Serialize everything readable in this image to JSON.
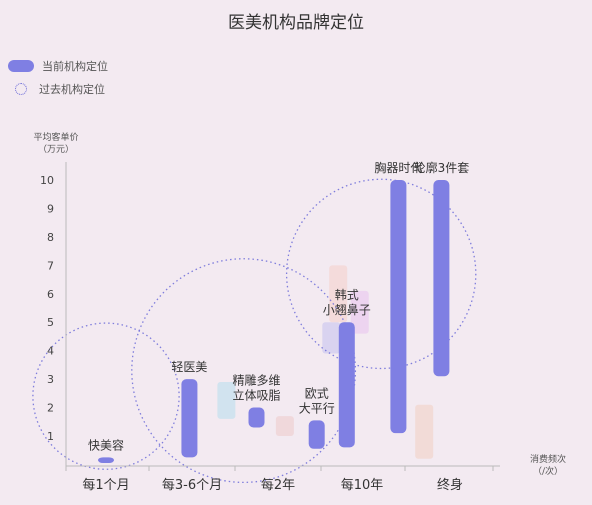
{
  "chart_data": {
    "type": "bar",
    "title": "医美机构品牌定位",
    "ylabel": [
      "平均客单价",
      "（万元）"
    ],
    "xlabel": [
      "消费频次",
      "（/次）"
    ],
    "ylim": [
      0,
      11
    ],
    "yticks": [
      1,
      2,
      3,
      4,
      5,
      6,
      7,
      8,
      9,
      10
    ],
    "categories": [
      "每1个月",
      "每3-6个月",
      "每2年",
      "每10年",
      "终身"
    ],
    "legend": {
      "current": "当前机构定位",
      "past": "过去机构定位"
    },
    "bars": [
      {
        "label": "快美容",
        "label_lines": [
          "快美容"
        ],
        "x": 0.6,
        "low": 0.05,
        "high": 0.25,
        "kind": "current"
      },
      {
        "label": "轻医美",
        "label_lines": [
          "轻医美"
        ],
        "x": 1.57,
        "low": 0.25,
        "high": 3.0,
        "kind": "current"
      },
      {
        "label": "精雕多维立体吸脂",
        "label_lines": [
          "精雕多维",
          "立体吸脂"
        ],
        "x": 2.35,
        "low": 1.3,
        "high": 2.0,
        "kind": "current"
      },
      {
        "label": "欧式大平行",
        "label_lines": [
          "欧式",
          "大平行"
        ],
        "x": 3.05,
        "low": 0.55,
        "high": 1.55,
        "kind": "current"
      },
      {
        "label": "韩式小翘鼻子",
        "label_lines": [
          "韩式",
          "小翘鼻子"
        ],
        "x": 3.4,
        "low": 0.6,
        "high": 5.0,
        "kind": "current"
      },
      {
        "label": "胸器时代",
        "label_lines": [
          "胸器时代"
        ],
        "x": 4.0,
        "low": 1.1,
        "high": 10.0,
        "kind": "current"
      },
      {
        "label": "轮廓3件套",
        "label_lines": [
          "轮廓3件套"
        ],
        "x": 4.5,
        "low": 3.1,
        "high": 10.0,
        "kind": "current"
      }
    ],
    "background_bars": [
      {
        "x": 2.0,
        "low": 1.6,
        "high": 2.9,
        "color": "#cfe3ee"
      },
      {
        "x": 2.68,
        "low": 1.0,
        "high": 1.7,
        "color": "#efd7d9"
      },
      {
        "x": 3.22,
        "low": 3.9,
        "high": 5.0,
        "color": "#d7d2ef"
      },
      {
        "x": 3.3,
        "low": 5.0,
        "high": 7.0,
        "color": "#f3dad9"
      },
      {
        "x": 3.55,
        "low": 4.6,
        "high": 6.1,
        "color": "#ecd3ef"
      },
      {
        "x": 4.3,
        "low": 0.2,
        "high": 2.1,
        "color": "#f1dad5"
      }
    ],
    "past_circles": [
      {
        "cx": 0.6,
        "cy": 2.4,
        "r_days": 0.85
      },
      {
        "cx": 2.2,
        "cy": 3.3,
        "r_days": 1.3
      },
      {
        "cx": 3.8,
        "cy": 6.7,
        "r_days": 1.1
      }
    ],
    "grid": false,
    "legend_position": "top-left"
  }
}
